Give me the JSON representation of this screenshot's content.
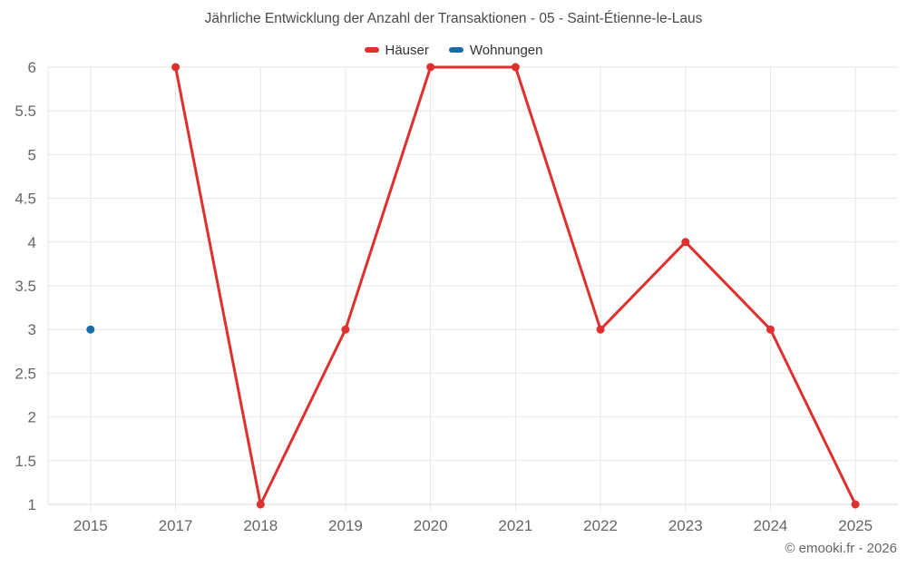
{
  "page": {
    "footer": "© emooki.fr - 2026"
  },
  "legend": {
    "items": [
      {
        "label": "Häuser",
        "color": "#e02f2f"
      },
      {
        "label": "Wohnungen",
        "color": "#1a6ca4"
      }
    ]
  },
  "chart_data": {
    "type": "line",
    "title": "Jährliche Entwicklung der Anzahl der Transaktionen - 05 - Saint-Étienne-le-Laus",
    "categories": [
      "2015",
      "2017",
      "2018",
      "2019",
      "2020",
      "2021",
      "2022",
      "2023",
      "2024",
      "2025"
    ],
    "series": [
      {
        "name": "Häuser",
        "color": "#e02f2f",
        "values": [
          null,
          6,
          1,
          3,
          6,
          6,
          3,
          4,
          3,
          1
        ]
      },
      {
        "name": "Wohnungen",
        "color": "#1a6ca4",
        "values": [
          3,
          null,
          null,
          null,
          null,
          null,
          null,
          null,
          null,
          null
        ]
      }
    ],
    "xlabel": "",
    "ylabel": "",
    "ylim": [
      1,
      6
    ],
    "ytick_step": 0.5,
    "grid": true,
    "legend_position": "top",
    "marker_radius": 4.5,
    "line_width": 3
  },
  "colors": {
    "background": "#ffffff",
    "grid": "#e6e6e6",
    "axis_line": "#d9d9d9",
    "axis_label": "#666666",
    "title_text": "#4a4a4a",
    "legend_text": "#333333",
    "footer_text": "#666666"
  }
}
